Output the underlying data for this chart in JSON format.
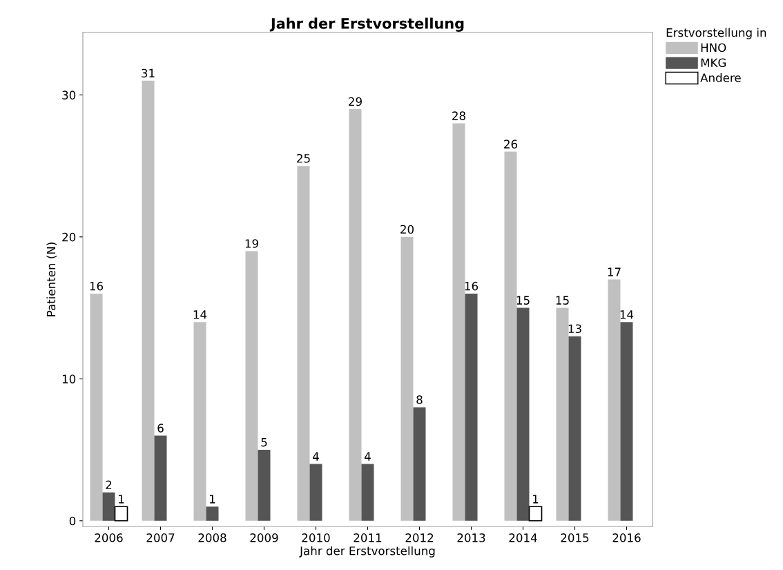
{
  "chart_data": {
    "type": "bar",
    "title": "Jahr der Erstvorstellung",
    "xlabel": "Jahr der Erstvorstellung",
    "ylabel": "Patienten (N)",
    "legend_title": "Erstvorstellung in",
    "categories": [
      "2006",
      "2007",
      "2008",
      "2009",
      "2010",
      "2011",
      "2012",
      "2013",
      "2014",
      "2015",
      "2016"
    ],
    "series": [
      {
        "name": "HNO",
        "color": "#c0c0c0",
        "values": [
          16,
          31,
          14,
          19,
          25,
          29,
          20,
          28,
          26,
          15,
          17
        ]
      },
      {
        "name": "MKG",
        "color": "#555555",
        "values": [
          2,
          6,
          1,
          5,
          4,
          4,
          8,
          16,
          15,
          13,
          14
        ]
      },
      {
        "name": "Andere",
        "color": "#ffffff",
        "values": [
          1,
          null,
          null,
          null,
          null,
          null,
          null,
          null,
          1,
          null,
          null
        ]
      }
    ],
    "ylim": [
      -0.4,
      34.4
    ],
    "yticks": [
      0,
      10,
      20,
      30
    ],
    "data_labels": true,
    "legend": "top right",
    "grid": false
  }
}
